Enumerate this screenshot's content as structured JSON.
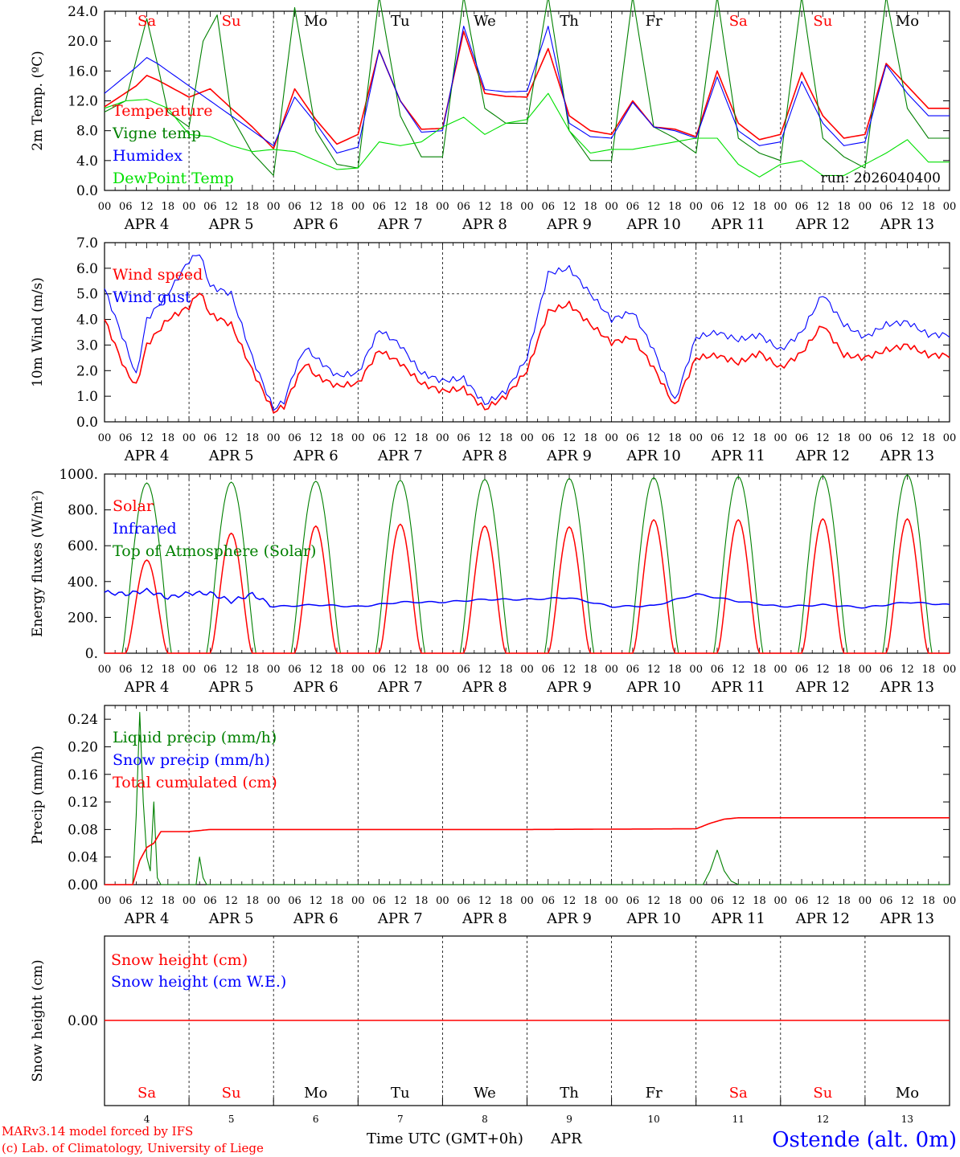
{
  "chart_data": [
    {
      "type": "line",
      "ylabel": "2m Temp. (ºC)",
      "ylim": [
        0,
        24
      ],
      "yticks": [
        "0.0",
        "4.0",
        "8.0",
        "12.0",
        "16.0",
        "20.0",
        "24.0"
      ],
      "run_label": "run: 2026040400",
      "legend": [
        {
          "name": "Temperature",
          "color": "#ff0000"
        },
        {
          "name": "Vigne temp",
          "color": "#008000"
        },
        {
          "name": "Humidex",
          "color": "#0000ff"
        },
        {
          "name": "DewPoint Temp",
          "color": "#00e000"
        }
      ],
      "series": [
        {
          "name": "Temperature",
          "color": "#ff0000",
          "t": [
            0,
            9,
            12,
            15,
            24,
            30,
            36,
            42,
            48,
            54,
            60,
            66,
            72,
            78,
            84,
            90,
            96,
            102,
            108,
            114,
            120,
            126,
            132,
            138,
            144,
            150,
            156,
            162,
            168,
            174,
            180,
            186,
            192,
            198,
            204,
            210,
            216,
            222,
            228,
            234
          ],
          "values": [
            11.2,
            14.0,
            15.4,
            14.8,
            12.5,
            13.6,
            11.0,
            8.5,
            5.6,
            13.6,
            9.5,
            6.2,
            7.5,
            18.8,
            12.0,
            8.2,
            8.3,
            21.3,
            13.0,
            12.6,
            12.5,
            19.0,
            10.0,
            8.0,
            7.5,
            12.0,
            8.5,
            8.2,
            7.2,
            16.0,
            9.0,
            6.8,
            7.5,
            15.8,
            10.0,
            7.0,
            7.5,
            17.0,
            14.0,
            11.0
          ]
        },
        {
          "name": "Vigne temp",
          "color": "#008000",
          "t": [
            0,
            6,
            12,
            15,
            18,
            24,
            28,
            32,
            36,
            42,
            48,
            54,
            60,
            66,
            72,
            78,
            84,
            90,
            96,
            102,
            108,
            114,
            120,
            126,
            132,
            138,
            144,
            150,
            156,
            162,
            168,
            174,
            180,
            186,
            192,
            198,
            204,
            210,
            216,
            222,
            228,
            234
          ],
          "values": [
            10.5,
            12.0,
            23.0,
            17.0,
            10.5,
            8.5,
            20.0,
            23.5,
            10.0,
            5.0,
            2.0,
            24.5,
            8.0,
            3.5,
            3.0,
            26.0,
            10.0,
            4.5,
            4.5,
            26.0,
            11.0,
            9.0,
            9.0,
            26.0,
            8.0,
            4.0,
            4.0,
            26.0,
            8.5,
            7.0,
            5.0,
            26.0,
            7.0,
            5.0,
            4.0,
            26.0,
            7.0,
            4.5,
            3.0,
            26.0,
            11.0,
            7.0
          ]
        },
        {
          "name": "Humidex",
          "color": "#0000ff",
          "t": [
            0,
            9,
            12,
            15,
            24,
            30,
            36,
            42,
            48,
            54,
            60,
            66,
            72,
            78,
            84,
            90,
            96,
            102,
            108,
            114,
            120,
            126,
            132,
            138,
            144,
            150,
            156,
            162,
            168,
            174,
            180,
            186,
            192,
            198,
            204,
            210,
            216,
            222,
            228,
            234
          ],
          "values": [
            13.0,
            16.5,
            17.8,
            17.0,
            14.0,
            12.0,
            10.0,
            8.0,
            6.0,
            12.5,
            9.0,
            5.0,
            5.8,
            18.8,
            12.0,
            7.8,
            8.0,
            22.0,
            13.5,
            13.2,
            13.3,
            22.0,
            9.0,
            7.2,
            7.0,
            11.8,
            8.5,
            8.0,
            7.0,
            15.2,
            8.0,
            6.0,
            6.5,
            14.6,
            9.0,
            6.0,
            6.5,
            16.8,
            13.0,
            10.0
          ]
        },
        {
          "name": "DewPoint Temp",
          "color": "#00e000",
          "t": [
            0,
            6,
            12,
            18,
            24,
            30,
            36,
            42,
            48,
            54,
            60,
            66,
            72,
            78,
            84,
            90,
            96,
            102,
            108,
            114,
            120,
            126,
            132,
            138,
            144,
            150,
            156,
            162,
            168,
            174,
            180,
            186,
            192,
            198,
            204,
            210,
            216,
            222,
            228,
            234
          ],
          "values": [
            11.0,
            12.0,
            12.2,
            11.0,
            7.5,
            7.2,
            6.0,
            5.2,
            5.5,
            5.2,
            4.0,
            2.8,
            3.0,
            6.5,
            6.0,
            6.5,
            8.5,
            9.8,
            7.5,
            9.0,
            9.5,
            13.0,
            8.0,
            5.0,
            5.5,
            5.5,
            6.0,
            6.5,
            7.0,
            7.0,
            3.5,
            1.8,
            3.5,
            4.0,
            2.0,
            2.0,
            3.5,
            5.0,
            6.8,
            3.8
          ]
        }
      ]
    },
    {
      "type": "line",
      "ylabel": "10m Wind (m/s)",
      "ylim": [
        0,
        7
      ],
      "yticks": [
        "0.0",
        "1.0",
        "2.0",
        "3.0",
        "4.0",
        "5.0",
        "6.0",
        "7.0"
      ],
      "dashed_reference": 5.0,
      "legend": [
        {
          "name": "Wind speed",
          "color": "#ff0000"
        },
        {
          "name": "Wind gust",
          "color": "#0000ff"
        }
      ],
      "series": [
        {
          "name": "Wind speed",
          "color": "#ff0000",
          "t": [
            0,
            6,
            9,
            12,
            18,
            24,
            27,
            30,
            36,
            42,
            48,
            51,
            54,
            57,
            60,
            66,
            72,
            78,
            84,
            90,
            96,
            102,
            108,
            114,
            120,
            126,
            132,
            138,
            144,
            150,
            156,
            162,
            168,
            174,
            180,
            186,
            192,
            198,
            204,
            210,
            216,
            222,
            228,
            234
          ],
          "values": [
            4.0,
            2.0,
            1.4,
            3.0,
            4.0,
            4.5,
            5.1,
            4.2,
            3.8,
            2.0,
            0.4,
            0.6,
            1.5,
            2.3,
            1.8,
            1.4,
            1.5,
            2.8,
            2.3,
            1.5,
            1.2,
            1.3,
            0.5,
            1.0,
            2.0,
            4.3,
            4.6,
            3.8,
            3.1,
            3.3,
            2.1,
            0.6,
            2.5,
            2.6,
            2.3,
            2.7,
            2.1,
            2.7,
            3.8,
            2.6,
            2.5,
            2.8,
            3.0,
            2.6
          ]
        },
        {
          "name": "Wind gust",
          "color": "#0000ff",
          "t": [
            0,
            6,
            9,
            12,
            18,
            24,
            27,
            30,
            36,
            42,
            48,
            51,
            54,
            57,
            60,
            66,
            72,
            78,
            84,
            90,
            96,
            102,
            108,
            114,
            120,
            126,
            132,
            138,
            144,
            150,
            156,
            162,
            168,
            174,
            180,
            186,
            192,
            198,
            204,
            210,
            216,
            222,
            228,
            234
          ],
          "values": [
            5.2,
            3.0,
            1.8,
            4.0,
            5.0,
            6.3,
            6.6,
            5.3,
            5.0,
            2.5,
            0.5,
            0.8,
            2.0,
            2.9,
            2.5,
            1.8,
            1.9,
            3.6,
            3.0,
            1.9,
            1.6,
            1.7,
            0.7,
            1.2,
            2.5,
            5.8,
            6.0,
            5.0,
            4.0,
            4.3,
            2.8,
            0.8,
            3.3,
            3.5,
            3.2,
            3.4,
            2.8,
            3.5,
            5.0,
            3.8,
            3.3,
            3.8,
            3.9,
            3.4
          ]
        }
      ]
    },
    {
      "type": "line",
      "ylabel": "Energy fluxes (W/m²)",
      "ylim": [
        0,
        1000
      ],
      "yticks": [
        "0.",
        "200.",
        "400.",
        "600.",
        "800.",
        "1000."
      ],
      "legend": [
        {
          "name": "Solar",
          "color": "#ff0000"
        },
        {
          "name": "Infrared",
          "color": "#0000ff"
        },
        {
          "name": "Top of Atmosphere (Solar)",
          "color": "#008000"
        }
      ],
      "solar_peak": [
        520,
        670,
        710,
        720,
        710,
        705,
        745,
        745,
        750,
        750
      ],
      "toa_peak": [
        950,
        955,
        960,
        965,
        970,
        975,
        980,
        985,
        990,
        995
      ],
      "series": [
        {
          "name": "Infrared",
          "color": "#0000ff",
          "t": [
            0,
            6,
            12,
            18,
            24,
            30,
            36,
            42,
            48,
            60,
            72,
            84,
            96,
            108,
            120,
            132,
            144,
            156,
            168,
            180,
            192,
            204,
            216,
            228,
            240
          ],
          "values": [
            340,
            330,
            350,
            310,
            335,
            335,
            290,
            330,
            260,
            270,
            260,
            285,
            285,
            300,
            300,
            310,
            260,
            265,
            330,
            290,
            260,
            270,
            255,
            285,
            270
          ]
        }
      ]
    },
    {
      "type": "line",
      "ylabel": "Precip (mm/h)",
      "ylim": [
        0,
        0.26
      ],
      "yticks": [
        "0.00",
        "0.04",
        "0.08",
        "0.12",
        "0.16",
        "0.20",
        "0.24"
      ],
      "legend": [
        {
          "name": "Liquid precip (mm/h)",
          "color": "#008000"
        },
        {
          "name": "Snow precip (mm/h)",
          "color": "#0000ff"
        },
        {
          "name": "Total cumulated (cm)",
          "color": "#ff0000"
        }
      ],
      "series": [
        {
          "name": "Liquid precip (mm/h)",
          "color": "#008000",
          "t": [
            0,
            8,
            9,
            10,
            11,
            12,
            13,
            14,
            15,
            16,
            17,
            26,
            27,
            28,
            29,
            170,
            172,
            174,
            176,
            178,
            180,
            240
          ],
          "values": [
            0,
            0,
            0.1,
            0.25,
            0.12,
            0.04,
            0.02,
            0.12,
            0.01,
            0,
            0,
            0,
            0.04,
            0.01,
            0,
            0,
            0.02,
            0.05,
            0.02,
            0.005,
            0,
            0
          ]
        },
        {
          "name": "Total cumulated (cm)",
          "color": "#ff0000",
          "t": [
            0,
            8,
            10,
            12,
            14,
            16,
            24,
            28,
            30,
            50,
            120,
            168,
            172,
            176,
            180,
            240
          ],
          "values": [
            0,
            0,
            0.035,
            0.054,
            0.06,
            0.077,
            0.077,
            0.079,
            0.08,
            0.08,
            0.08,
            0.081,
            0.089,
            0.095,
            0.097,
            0.097
          ]
        }
      ]
    },
    {
      "type": "line",
      "ylabel": "Snow height (cm)",
      "yticks": [
        "0.00"
      ],
      "legend": [
        {
          "name": "Snow height (cm)",
          "color": "#ff0000"
        },
        {
          "name": "Snow height (cm W.E.)",
          "color": "#0000ff"
        }
      ],
      "series": [
        {
          "name": "Snow height (cm)",
          "color": "#ff0000",
          "t": [
            0,
            240
          ],
          "values": [
            0,
            0
          ]
        }
      ]
    }
  ],
  "x_axis": {
    "hour_ticks": [
      "00",
      "06",
      "12",
      "18"
    ],
    "final_tick": "00",
    "dates": [
      "APR  4",
      "APR  5",
      "APR  6",
      "APR  7",
      "APR  8",
      "APR  9",
      "APR 10",
      "APR 11",
      "APR 12",
      "APR 13"
    ],
    "weekdays": [
      {
        "label": "Sa",
        "color": "#ff0000"
      },
      {
        "label": "Su",
        "color": "#ff0000"
      },
      {
        "label": "Mo",
        "color": "#000000"
      },
      {
        "label": "Tu",
        "color": "#000000"
      },
      {
        "label": "We",
        "color": "#000000"
      },
      {
        "label": "Th",
        "color": "#000000"
      },
      {
        "label": "Fr",
        "color": "#000000"
      },
      {
        "label": "Sa",
        "color": "#ff0000"
      },
      {
        "label": "Su",
        "color": "#ff0000"
      },
      {
        "label": "Mo",
        "color": "#000000"
      }
    ],
    "day_numbers": [
      "4",
      "5",
      "6",
      "7",
      "8",
      "9",
      "10",
      "11",
      "12",
      "13"
    ],
    "title": "Time UTC (GMT+0h)",
    "month": "APR"
  },
  "footer": {
    "model_line": "MARv3.14 model forced by IFS",
    "credit_line": "(c) Lab. of Climatology, University of Liege",
    "station": "Ostende (alt. 0m)"
  },
  "colors": {
    "red": "#ff0000",
    "green": "#008000",
    "blue": "#0000ff",
    "light_green": "#00e000",
    "station": "#0000ff"
  }
}
